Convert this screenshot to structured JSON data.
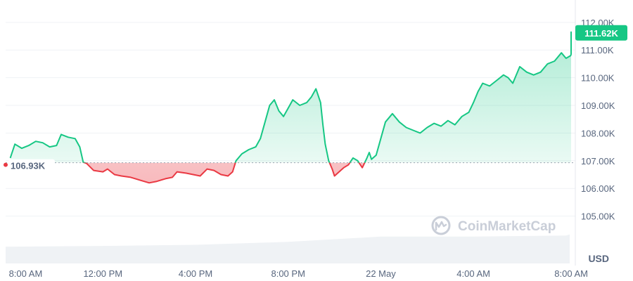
{
  "chart_data": {
    "type": "area",
    "title": "",
    "currency": "USD",
    "reference_value": 106930,
    "reference_label": "106.93K",
    "current_value": 111620,
    "current_label": "111.62K",
    "colors": {
      "up": "#16c784",
      "down": "#ea3943",
      "volume": "#eff2f5",
      "current_badge": "#16c784"
    },
    "ylim": [
      104000,
      112300
    ],
    "y_ticks": [
      {
        "value": 105000,
        "label": "105.00K"
      },
      {
        "value": 106000,
        "label": "106.00K"
      },
      {
        "value": 107000,
        "label": "107.00K"
      },
      {
        "value": 108000,
        "label": "108.00K"
      },
      {
        "value": 109000,
        "label": "109.00K"
      },
      {
        "value": 110000,
        "label": "110.00K"
      },
      {
        "value": 111000,
        "label": "111.00K"
      },
      {
        "value": 112000,
        "label": "112.00K"
      }
    ],
    "xlim": [
      7.8,
      32.4
    ],
    "x_ticks": [
      {
        "value": 8,
        "label": "8:00 AM"
      },
      {
        "value": 12,
        "label": "12:00 PM"
      },
      {
        "value": 16,
        "label": "4:00 PM"
      },
      {
        "value": 20,
        "label": "8:00 PM"
      },
      {
        "value": 24,
        "label": "22 May"
      },
      {
        "value": 28,
        "label": "4:00 AM"
      },
      {
        "value": 32,
        "label": "8:00 AM"
      }
    ],
    "series": [
      {
        "values": [
          [
            8.0,
            107100
          ],
          [
            8.2,
            107600
          ],
          [
            8.5,
            107450
          ],
          [
            8.8,
            107550
          ],
          [
            9.1,
            107700
          ],
          [
            9.4,
            107650
          ],
          [
            9.7,
            107500
          ],
          [
            10.0,
            107550
          ],
          [
            10.2,
            107950
          ],
          [
            10.5,
            107850
          ],
          [
            10.8,
            107800
          ],
          [
            11.0,
            107500
          ],
          [
            11.15,
            106950
          ],
          [
            11.3,
            106900
          ],
          [
            11.6,
            106650
          ],
          [
            12.0,
            106600
          ],
          [
            12.2,
            106700
          ],
          [
            12.5,
            106500
          ],
          [
            12.8,
            106450
          ],
          [
            13.2,
            106400
          ],
          [
            13.6,
            106300
          ],
          [
            14.0,
            106200
          ],
          [
            14.3,
            106250
          ],
          [
            14.7,
            106350
          ],
          [
            15.0,
            106400
          ],
          [
            15.2,
            106600
          ],
          [
            15.6,
            106550
          ],
          [
            15.9,
            106500
          ],
          [
            16.2,
            106450
          ],
          [
            16.5,
            106700
          ],
          [
            16.8,
            106650
          ],
          [
            17.1,
            106500
          ],
          [
            17.4,
            106450
          ],
          [
            17.6,
            106600
          ],
          [
            17.75,
            107000
          ],
          [
            18.0,
            107250
          ],
          [
            18.3,
            107400
          ],
          [
            18.6,
            107500
          ],
          [
            18.8,
            107800
          ],
          [
            19.0,
            108400
          ],
          [
            19.2,
            109000
          ],
          [
            19.4,
            109200
          ],
          [
            19.6,
            108800
          ],
          [
            19.8,
            108600
          ],
          [
            20.0,
            108900
          ],
          [
            20.2,
            109200
          ],
          [
            20.5,
            109000
          ],
          [
            20.8,
            109100
          ],
          [
            21.0,
            109300
          ],
          [
            21.2,
            109600
          ],
          [
            21.4,
            109100
          ],
          [
            21.5,
            108300
          ],
          [
            21.6,
            107600
          ],
          [
            21.75,
            107000
          ],
          [
            21.9,
            106700
          ],
          [
            22.0,
            106450
          ],
          [
            22.2,
            106600
          ],
          [
            22.4,
            106750
          ],
          [
            22.6,
            106850
          ],
          [
            22.8,
            107100
          ],
          [
            23.0,
            107000
          ],
          [
            23.2,
            106750
          ],
          [
            23.4,
            107100
          ],
          [
            23.5,
            107300
          ],
          [
            23.6,
            107050
          ],
          [
            23.8,
            107200
          ],
          [
            24.0,
            107800
          ],
          [
            24.2,
            108400
          ],
          [
            24.5,
            108700
          ],
          [
            24.8,
            108400
          ],
          [
            25.1,
            108200
          ],
          [
            25.4,
            108100
          ],
          [
            25.7,
            108000
          ],
          [
            26.0,
            108200
          ],
          [
            26.3,
            108350
          ],
          [
            26.6,
            108250
          ],
          [
            26.9,
            108450
          ],
          [
            27.2,
            108300
          ],
          [
            27.5,
            108600
          ],
          [
            27.8,
            108750
          ],
          [
            28.0,
            109100
          ],
          [
            28.2,
            109500
          ],
          [
            28.4,
            109800
          ],
          [
            28.7,
            109700
          ],
          [
            29.0,
            109900
          ],
          [
            29.3,
            110100
          ],
          [
            29.5,
            110000
          ],
          [
            29.7,
            109800
          ],
          [
            30.0,
            110400
          ],
          [
            30.3,
            110200
          ],
          [
            30.6,
            110100
          ],
          [
            30.9,
            110200
          ],
          [
            31.2,
            110500
          ],
          [
            31.5,
            110600
          ],
          [
            31.8,
            110900
          ],
          [
            32.0,
            110700
          ],
          [
            32.2,
            110800
          ],
          [
            32.4,
            110850
          ],
          [
            32.7,
            111100
          ],
          [
            33.0,
            111500
          ],
          [
            33.2,
            111650
          ],
          [
            33.5,
            111400
          ],
          [
            33.8,
            111500
          ],
          [
            34.0,
            111620
          ]
        ]
      }
    ],
    "volume": [
      [
        8.0,
        0.45
      ],
      [
        12.0,
        0.47
      ],
      [
        16.0,
        0.5
      ],
      [
        20.0,
        0.58
      ],
      [
        24.0,
        0.72
      ],
      [
        28.0,
        0.72
      ],
      [
        32.0,
        0.75
      ],
      [
        34.0,
        0.78
      ]
    ],
    "watermark": "CoinMarketCap",
    "grid": true,
    "legend": "none"
  }
}
